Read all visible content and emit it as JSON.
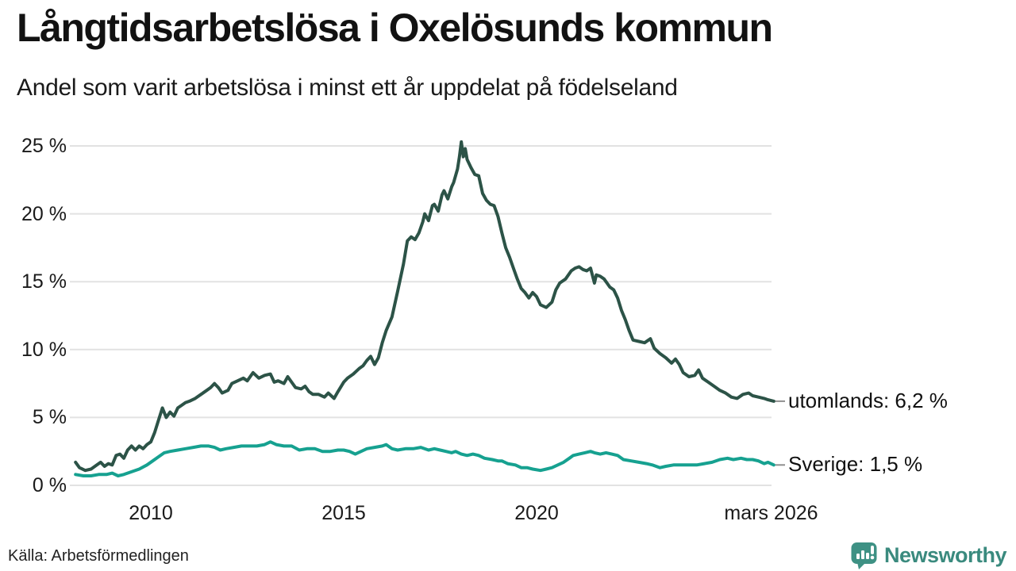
{
  "chart_data": {
    "type": "line",
    "title": "Långtidsarbetslösa i Oxelösunds kommun",
    "subtitle": "Andel som varit arbetslösa i minst ett år uppdelat på födelseland",
    "xlabel": "",
    "ylabel": "",
    "x_range": [
      2008.0,
      2026.25
    ],
    "ylim": [
      0,
      25.5
    ],
    "grid": "horizontal",
    "legend_position": "end-of-line",
    "y_axis": {
      "ticks": [
        {
          "label": "0 %",
          "value": 0
        },
        {
          "label": "5 %",
          "value": 5
        },
        {
          "label": "10 %",
          "value": 10
        },
        {
          "label": "15 %",
          "value": 15
        },
        {
          "label": "20 %",
          "value": 20
        },
        {
          "label": "25 %",
          "value": 25
        }
      ]
    },
    "x_axis": {
      "ticks": [
        {
          "label": "2010",
          "year": 2010
        },
        {
          "label": "2015",
          "year": 2015
        },
        {
          "label": "2020",
          "year": 2020
        },
        {
          "label": "mars 2026",
          "year": 2026.08
        }
      ]
    },
    "colors": {
      "grid": "#e2e2e2",
      "tick_dash": "#8f8f8f"
    },
    "series": [
      {
        "name": "utomlands",
        "end_label": "utomlands: 6,2 %",
        "last_value": 6.2,
        "color": "#2c5347",
        "points": [
          [
            2008.05,
            1.7
          ],
          [
            2008.15,
            1.3
          ],
          [
            2008.3,
            1.1
          ],
          [
            2008.45,
            1.2
          ],
          [
            2008.6,
            1.5
          ],
          [
            2008.7,
            1.7
          ],
          [
            2008.8,
            1.4
          ],
          [
            2008.9,
            1.6
          ],
          [
            2009.0,
            1.5
          ],
          [
            2009.1,
            2.2
          ],
          [
            2009.2,
            2.3
          ],
          [
            2009.3,
            2.0
          ],
          [
            2009.4,
            2.6
          ],
          [
            2009.5,
            2.9
          ],
          [
            2009.6,
            2.6
          ],
          [
            2009.7,
            2.9
          ],
          [
            2009.8,
            2.7
          ],
          [
            2009.9,
            3.0
          ],
          [
            2010.0,
            3.2
          ],
          [
            2010.1,
            3.9
          ],
          [
            2010.2,
            4.8
          ],
          [
            2010.3,
            5.7
          ],
          [
            2010.4,
            5.0
          ],
          [
            2010.5,
            5.4
          ],
          [
            2010.6,
            5.1
          ],
          [
            2010.7,
            5.7
          ],
          [
            2010.8,
            5.9
          ],
          [
            2010.9,
            6.1
          ],
          [
            2011.0,
            6.2
          ],
          [
            2011.15,
            6.4
          ],
          [
            2011.3,
            6.7
          ],
          [
            2011.45,
            7.0
          ],
          [
            2011.55,
            7.2
          ],
          [
            2011.65,
            7.5
          ],
          [
            2011.75,
            7.2
          ],
          [
            2011.85,
            6.8
          ],
          [
            2012.0,
            7.0
          ],
          [
            2012.1,
            7.5
          ],
          [
            2012.25,
            7.7
          ],
          [
            2012.4,
            7.9
          ],
          [
            2012.5,
            7.7
          ],
          [
            2012.65,
            8.3
          ],
          [
            2012.8,
            7.9
          ],
          [
            2012.95,
            8.1
          ],
          [
            2013.1,
            8.2
          ],
          [
            2013.2,
            7.6
          ],
          [
            2013.3,
            7.7
          ],
          [
            2013.45,
            7.5
          ],
          [
            2013.55,
            8.0
          ],
          [
            2013.65,
            7.6
          ],
          [
            2013.75,
            7.2
          ],
          [
            2013.9,
            7.1
          ],
          [
            2014.0,
            7.3
          ],
          [
            2014.1,
            6.9
          ],
          [
            2014.2,
            6.7
          ],
          [
            2014.35,
            6.7
          ],
          [
            2014.5,
            6.5
          ],
          [
            2014.6,
            6.8
          ],
          [
            2014.75,
            6.4
          ],
          [
            2014.85,
            6.9
          ],
          [
            2015.0,
            7.6
          ],
          [
            2015.1,
            7.9
          ],
          [
            2015.25,
            8.2
          ],
          [
            2015.4,
            8.6
          ],
          [
            2015.5,
            8.8
          ],
          [
            2015.6,
            9.2
          ],
          [
            2015.7,
            9.5
          ],
          [
            2015.8,
            8.9
          ],
          [
            2015.9,
            9.4
          ],
          [
            2016.0,
            10.5
          ],
          [
            2016.1,
            11.4
          ],
          [
            2016.25,
            12.4
          ],
          [
            2016.4,
            14.3
          ],
          [
            2016.55,
            16.3
          ],
          [
            2016.65,
            18.0
          ],
          [
            2016.75,
            18.3
          ],
          [
            2016.85,
            18.1
          ],
          [
            2016.95,
            18.6
          ],
          [
            2017.05,
            19.4
          ],
          [
            2017.1,
            20.0
          ],
          [
            2017.2,
            19.5
          ],
          [
            2017.3,
            20.6
          ],
          [
            2017.35,
            20.7
          ],
          [
            2017.45,
            20.2
          ],
          [
            2017.55,
            21.4
          ],
          [
            2017.6,
            21.7
          ],
          [
            2017.7,
            21.1
          ],
          [
            2017.8,
            22.0
          ],
          [
            2017.85,
            22.3
          ],
          [
            2017.95,
            23.3
          ],
          [
            2018.0,
            24.2
          ],
          [
            2018.05,
            25.3
          ],
          [
            2018.1,
            24.2
          ],
          [
            2018.15,
            24.8
          ],
          [
            2018.2,
            24.0
          ],
          [
            2018.3,
            23.4
          ],
          [
            2018.4,
            22.9
          ],
          [
            2018.5,
            22.8
          ],
          [
            2018.6,
            21.5
          ],
          [
            2018.7,
            21.0
          ],
          [
            2018.8,
            20.7
          ],
          [
            2018.9,
            20.6
          ],
          [
            2019.0,
            19.8
          ],
          [
            2019.1,
            18.6
          ],
          [
            2019.2,
            17.5
          ],
          [
            2019.3,
            16.8
          ],
          [
            2019.4,
            16.0
          ],
          [
            2019.5,
            15.2
          ],
          [
            2019.6,
            14.5
          ],
          [
            2019.7,
            14.2
          ],
          [
            2019.8,
            13.8
          ],
          [
            2019.9,
            14.2
          ],
          [
            2020.0,
            13.9
          ],
          [
            2020.1,
            13.3
          ],
          [
            2020.25,
            13.1
          ],
          [
            2020.4,
            13.5
          ],
          [
            2020.5,
            14.4
          ],
          [
            2020.6,
            14.9
          ],
          [
            2020.75,
            15.2
          ],
          [
            2020.9,
            15.8
          ],
          [
            2021.0,
            16.0
          ],
          [
            2021.1,
            16.1
          ],
          [
            2021.2,
            15.9
          ],
          [
            2021.3,
            15.8
          ],
          [
            2021.4,
            16.0
          ],
          [
            2021.5,
            14.9
          ],
          [
            2021.55,
            15.5
          ],
          [
            2021.65,
            15.4
          ],
          [
            2021.75,
            15.2
          ],
          [
            2021.9,
            14.6
          ],
          [
            2022.0,
            14.4
          ],
          [
            2022.1,
            13.8
          ],
          [
            2022.2,
            12.9
          ],
          [
            2022.3,
            12.2
          ],
          [
            2022.4,
            11.4
          ],
          [
            2022.5,
            10.7
          ],
          [
            2022.65,
            10.6
          ],
          [
            2022.8,
            10.5
          ],
          [
            2022.95,
            10.8
          ],
          [
            2023.05,
            10.1
          ],
          [
            2023.2,
            9.7
          ],
          [
            2023.35,
            9.4
          ],
          [
            2023.5,
            9.0
          ],
          [
            2023.6,
            9.3
          ],
          [
            2023.7,
            8.9
          ],
          [
            2023.8,
            8.3
          ],
          [
            2023.95,
            8.0
          ],
          [
            2024.1,
            8.1
          ],
          [
            2024.2,
            8.5
          ],
          [
            2024.3,
            7.9
          ],
          [
            2024.45,
            7.6
          ],
          [
            2024.6,
            7.3
          ],
          [
            2024.75,
            7.0
          ],
          [
            2024.9,
            6.8
          ],
          [
            2025.05,
            6.5
          ],
          [
            2025.2,
            6.4
          ],
          [
            2025.35,
            6.7
          ],
          [
            2025.5,
            6.8
          ],
          [
            2025.6,
            6.6
          ],
          [
            2025.75,
            6.5
          ],
          [
            2025.9,
            6.4
          ],
          [
            2026.0,
            6.3
          ],
          [
            2026.15,
            6.2
          ]
        ]
      },
      {
        "name": "Sverige",
        "end_label": "Sverige: 1,5 %",
        "last_value": 1.5,
        "color": "#16a190",
        "points": [
          [
            2008.05,
            0.8
          ],
          [
            2008.25,
            0.7
          ],
          [
            2008.45,
            0.7
          ],
          [
            2008.65,
            0.8
          ],
          [
            2008.85,
            0.8
          ],
          [
            2009.0,
            0.9
          ],
          [
            2009.15,
            0.7
          ],
          [
            2009.3,
            0.8
          ],
          [
            2009.5,
            1.0
          ],
          [
            2009.7,
            1.2
          ],
          [
            2009.9,
            1.5
          ],
          [
            2010.05,
            1.8
          ],
          [
            2010.2,
            2.1
          ],
          [
            2010.35,
            2.4
          ],
          [
            2010.5,
            2.5
          ],
          [
            2010.7,
            2.6
          ],
          [
            2010.9,
            2.7
          ],
          [
            2011.1,
            2.8
          ],
          [
            2011.3,
            2.9
          ],
          [
            2011.5,
            2.9
          ],
          [
            2011.65,
            2.8
          ],
          [
            2011.8,
            2.6
          ],
          [
            2011.95,
            2.7
          ],
          [
            2012.15,
            2.8
          ],
          [
            2012.35,
            2.9
          ],
          [
            2012.55,
            2.9
          ],
          [
            2012.75,
            2.9
          ],
          [
            2012.95,
            3.0
          ],
          [
            2013.1,
            3.2
          ],
          [
            2013.25,
            3.0
          ],
          [
            2013.45,
            2.9
          ],
          [
            2013.65,
            2.9
          ],
          [
            2013.85,
            2.6
          ],
          [
            2014.05,
            2.7
          ],
          [
            2014.25,
            2.7
          ],
          [
            2014.45,
            2.5
          ],
          [
            2014.65,
            2.5
          ],
          [
            2014.85,
            2.6
          ],
          [
            2015.0,
            2.6
          ],
          [
            2015.15,
            2.5
          ],
          [
            2015.3,
            2.3
          ],
          [
            2015.45,
            2.5
          ],
          [
            2015.6,
            2.7
          ],
          [
            2015.8,
            2.8
          ],
          [
            2016.0,
            2.9
          ],
          [
            2016.1,
            3.0
          ],
          [
            2016.25,
            2.7
          ],
          [
            2016.4,
            2.6
          ],
          [
            2016.6,
            2.7
          ],
          [
            2016.8,
            2.7
          ],
          [
            2017.0,
            2.8
          ],
          [
            2017.2,
            2.6
          ],
          [
            2017.35,
            2.7
          ],
          [
            2017.5,
            2.6
          ],
          [
            2017.65,
            2.5
          ],
          [
            2017.8,
            2.4
          ],
          [
            2017.9,
            2.5
          ],
          [
            2018.05,
            2.3
          ],
          [
            2018.2,
            2.2
          ],
          [
            2018.35,
            2.3
          ],
          [
            2018.5,
            2.2
          ],
          [
            2018.65,
            2.0
          ],
          [
            2018.85,
            1.9
          ],
          [
            2019.0,
            1.8
          ],
          [
            2019.1,
            1.8
          ],
          [
            2019.25,
            1.6
          ],
          [
            2019.45,
            1.5
          ],
          [
            2019.6,
            1.3
          ],
          [
            2019.75,
            1.3
          ],
          [
            2019.9,
            1.2
          ],
          [
            2020.1,
            1.1
          ],
          [
            2020.25,
            1.2
          ],
          [
            2020.4,
            1.3
          ],
          [
            2020.55,
            1.5
          ],
          [
            2020.7,
            1.7
          ],
          [
            2020.85,
            2.0
          ],
          [
            2020.95,
            2.2
          ],
          [
            2021.1,
            2.3
          ],
          [
            2021.25,
            2.4
          ],
          [
            2021.4,
            2.5
          ],
          [
            2021.5,
            2.4
          ],
          [
            2021.65,
            2.3
          ],
          [
            2021.8,
            2.4
          ],
          [
            2021.95,
            2.3
          ],
          [
            2022.1,
            2.2
          ],
          [
            2022.25,
            1.9
          ],
          [
            2022.45,
            1.8
          ],
          [
            2022.65,
            1.7
          ],
          [
            2022.85,
            1.6
          ],
          [
            2023.0,
            1.5
          ],
          [
            2023.2,
            1.3
          ],
          [
            2023.35,
            1.4
          ],
          [
            2023.55,
            1.5
          ],
          [
            2023.75,
            1.5
          ],
          [
            2023.95,
            1.5
          ],
          [
            2024.15,
            1.5
          ],
          [
            2024.35,
            1.6
          ],
          [
            2024.55,
            1.7
          ],
          [
            2024.75,
            1.9
          ],
          [
            2024.95,
            2.0
          ],
          [
            2025.1,
            1.9
          ],
          [
            2025.3,
            2.0
          ],
          [
            2025.45,
            1.9
          ],
          [
            2025.6,
            1.9
          ],
          [
            2025.75,
            1.8
          ],
          [
            2025.9,
            1.6
          ],
          [
            2026.0,
            1.7
          ],
          [
            2026.15,
            1.5
          ]
        ]
      }
    ]
  },
  "footer": {
    "source": "Källa: Arbetsförmedlingen",
    "brand": "Newsworthy",
    "brand_color": "#3a8a7e",
    "logo_color": "#3e9184"
  }
}
